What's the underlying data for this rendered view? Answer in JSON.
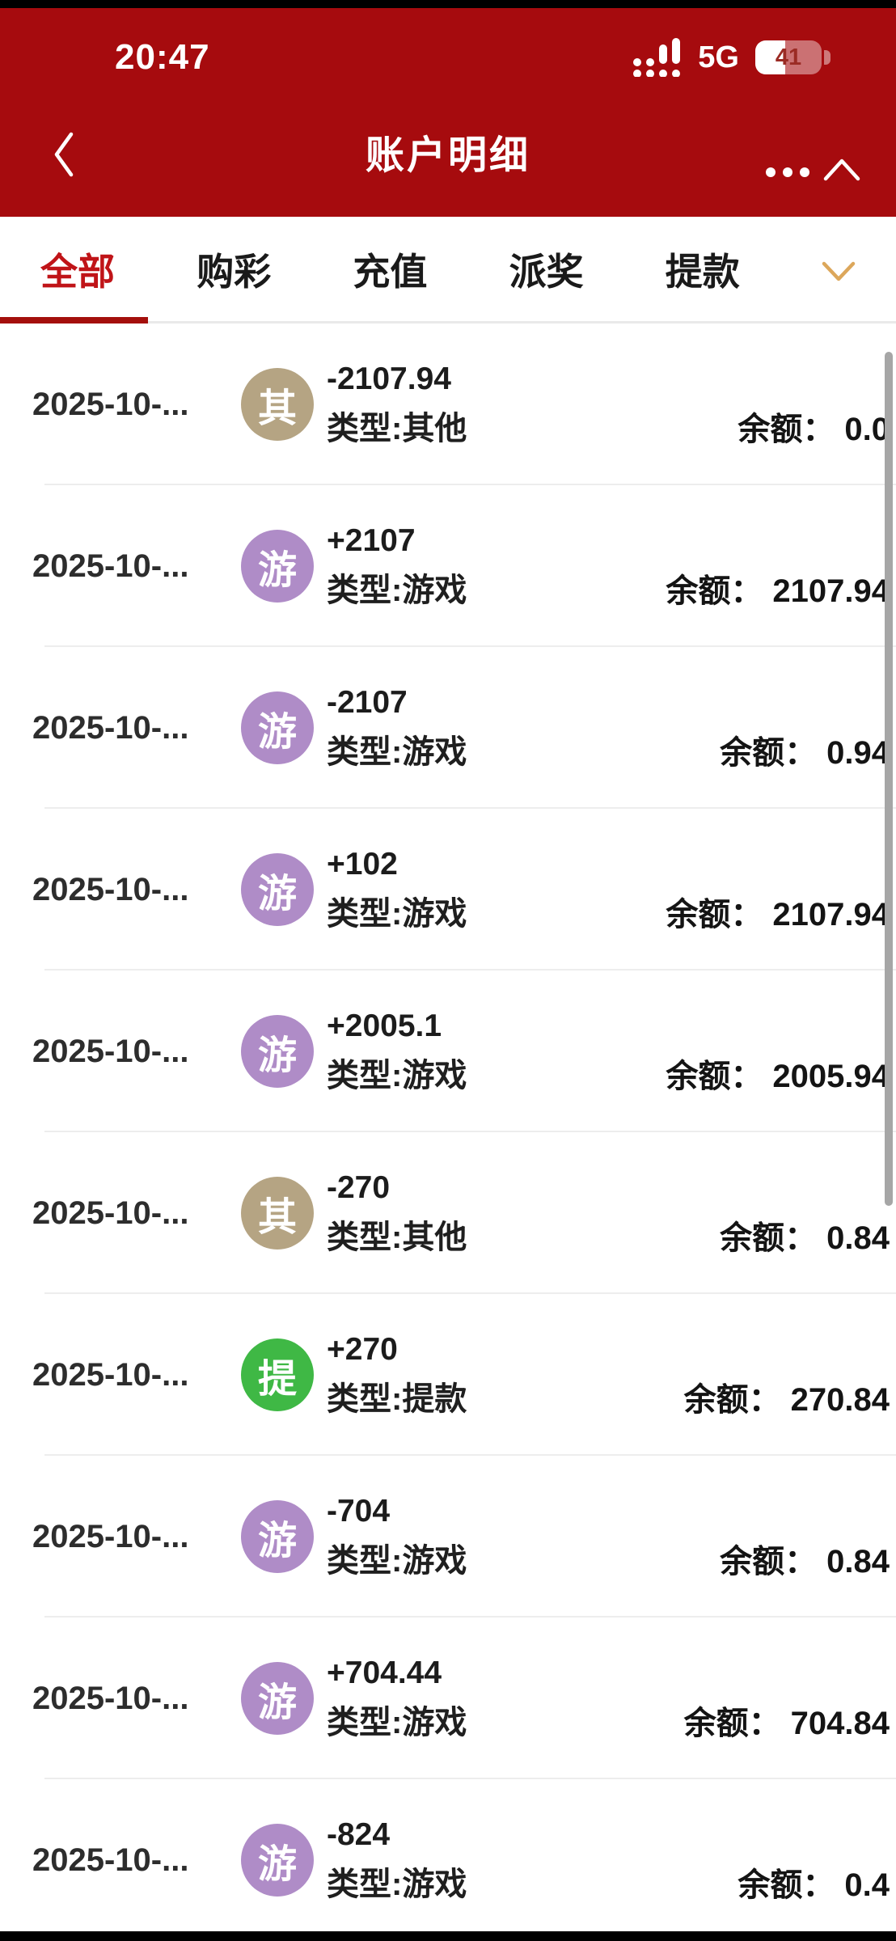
{
  "status_bar": {
    "time": "20:47",
    "network": "5G",
    "battery_percent": "41",
    "icons": {
      "signal": "cellular-signal-icon",
      "battery": "battery-icon"
    }
  },
  "header": {
    "title": "账户明细",
    "icons": {
      "back": "chevron-left-icon",
      "more": "ellipsis-icon",
      "collapse": "chevron-up-icon"
    }
  },
  "tabs": {
    "items": [
      {
        "name": "all",
        "label": "全部",
        "active": true
      },
      {
        "name": "lottery",
        "label": "购彩",
        "active": false
      },
      {
        "name": "deposit",
        "label": "充值",
        "active": false
      },
      {
        "name": "prize",
        "label": "派奖",
        "active": false
      },
      {
        "name": "withdraw",
        "label": "提款",
        "active": false
      }
    ],
    "filter_icon": "chevron-down-icon"
  },
  "list": {
    "type_prefix": "类型:",
    "balance_label": "余额：",
    "transactions": [
      {
        "date": "2025-10-...",
        "badge": "其",
        "badge_name": "other",
        "badge_color": "#B5A483",
        "amount": "-2107.94",
        "type": "其他",
        "balance": "0.0"
      },
      {
        "date": "2025-10-...",
        "badge": "游",
        "badge_name": "game",
        "badge_color": "#AF8CC7",
        "amount": "+2107",
        "type": "游戏",
        "balance": "2107.94"
      },
      {
        "date": "2025-10-...",
        "badge": "游",
        "badge_name": "game",
        "badge_color": "#AF8CC7",
        "amount": "-2107",
        "type": "游戏",
        "balance": "0.94"
      },
      {
        "date": "2025-10-...",
        "badge": "游",
        "badge_name": "game",
        "badge_color": "#AF8CC7",
        "amount": "+102",
        "type": "游戏",
        "balance": "2107.94"
      },
      {
        "date": "2025-10-...",
        "badge": "游",
        "badge_name": "game",
        "badge_color": "#AF8CC7",
        "amount": "+2005.1",
        "type": "游戏",
        "balance": "2005.94"
      },
      {
        "date": "2025-10-...",
        "badge": "其",
        "badge_name": "other",
        "badge_color": "#B5A483",
        "amount": "-270",
        "type": "其他",
        "balance": "0.84"
      },
      {
        "date": "2025-10-...",
        "badge": "提",
        "badge_name": "withdraw",
        "badge_color": "#3FB845",
        "amount": "+270",
        "type": "提款",
        "balance": "270.84"
      },
      {
        "date": "2025-10-...",
        "badge": "游",
        "badge_name": "game",
        "badge_color": "#AF8CC7",
        "amount": "-704",
        "type": "游戏",
        "balance": "0.84"
      },
      {
        "date": "2025-10-...",
        "badge": "游",
        "badge_name": "game",
        "badge_color": "#AF8CC7",
        "amount": "+704.44",
        "type": "游戏",
        "balance": "704.84"
      },
      {
        "date": "2025-10-...",
        "badge": "游",
        "badge_name": "game",
        "badge_color": "#AF8CC7",
        "amount": "-824",
        "type": "游戏",
        "balance": "0.4"
      }
    ]
  },
  "colors": {
    "header_red": "#A60B0E",
    "tab_active_red": "#C01418",
    "tab_underline_red": "#A40F0C",
    "filter_gold": "#DCA75B",
    "badge_other": "#B5A483",
    "badge_game": "#AF8CC7",
    "badge_withdraw": "#3FB845",
    "scrollbar_gray": "#A6A6A6"
  }
}
